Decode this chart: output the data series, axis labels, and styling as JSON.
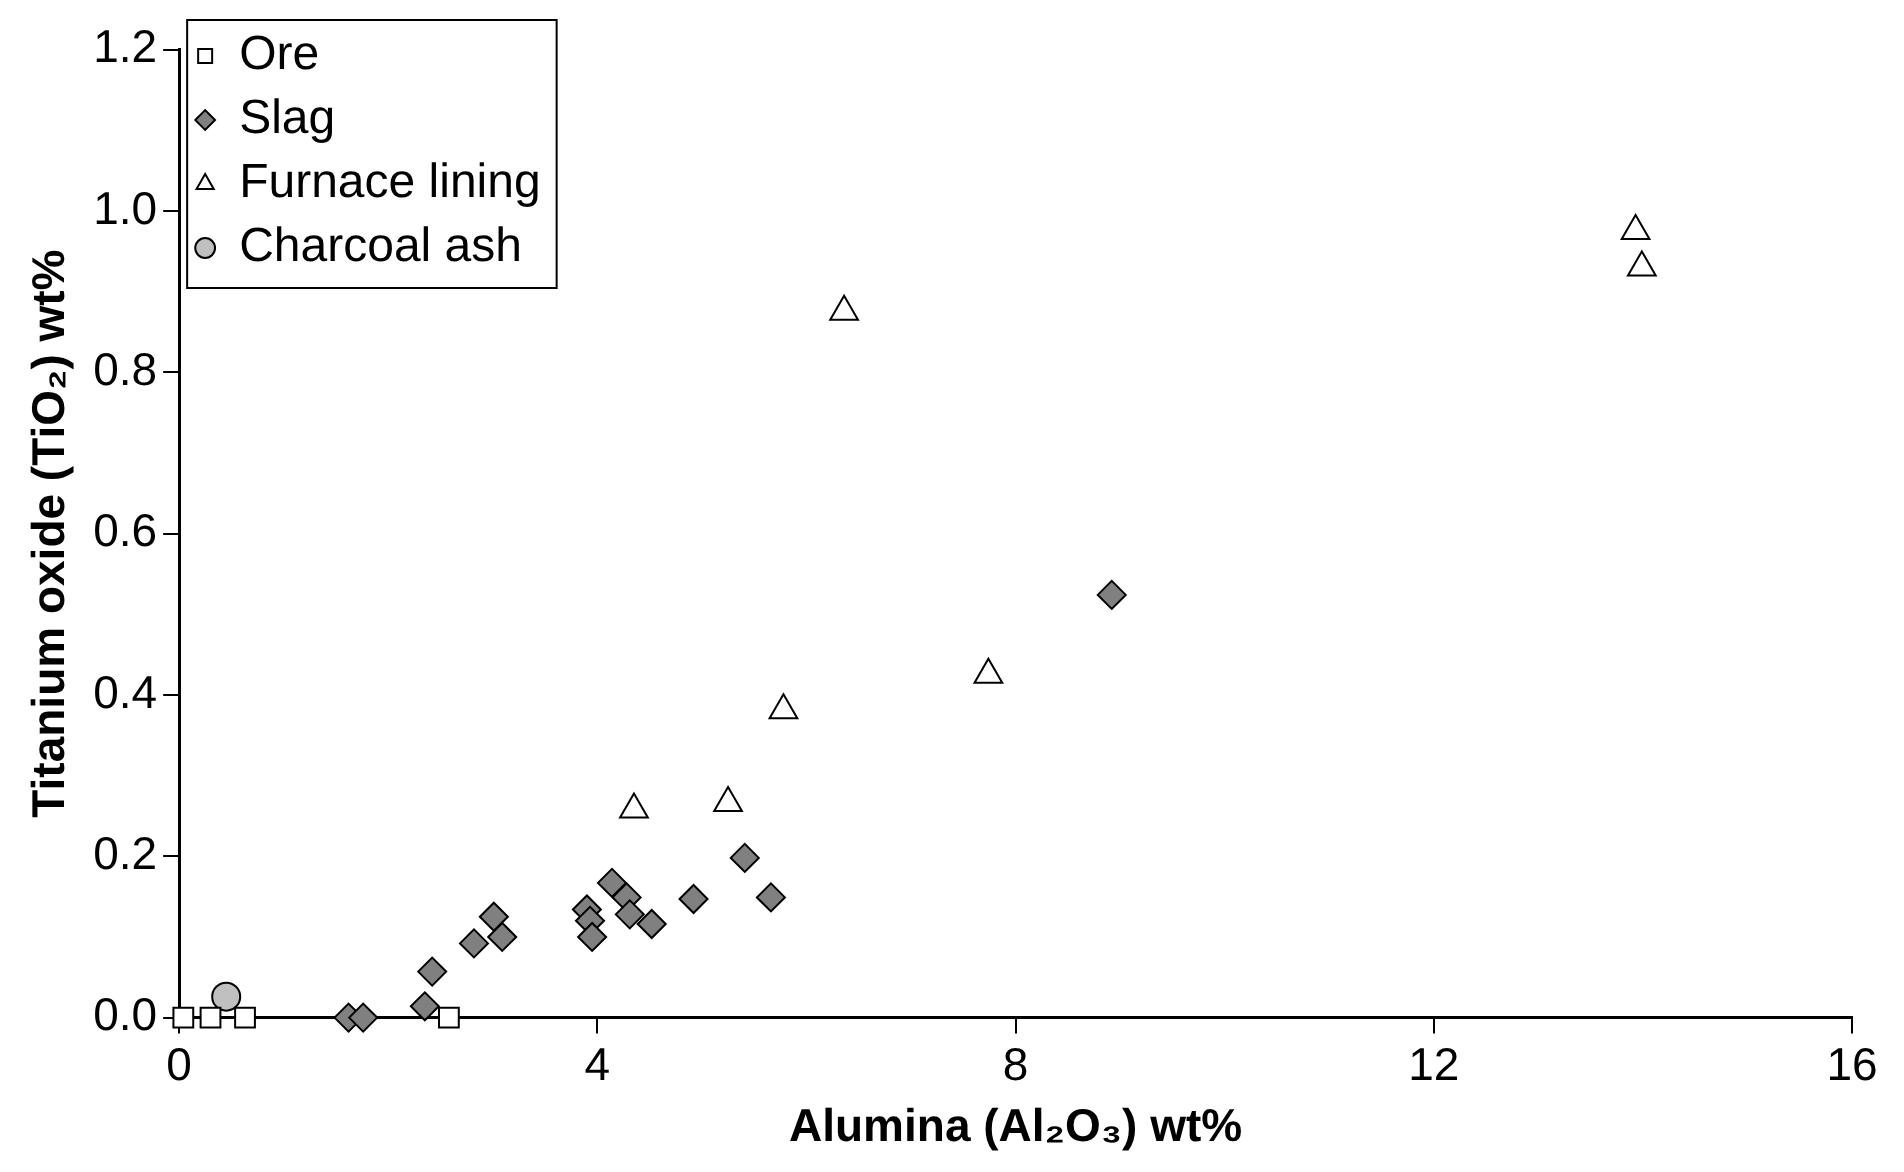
{
  "chart_data": {
    "type": "scatter",
    "xlabel": "Alumina (Al₂O₃) wt%",
    "ylabel": "Titanium oxide (TiO₂) wt%",
    "xlim": [
      0,
      16
    ],
    "xticks": [
      0,
      4,
      8,
      12,
      16
    ],
    "ylim": [
      0,
      1.2
    ],
    "yticks": [
      {
        "value": 0,
        "label": "0.0"
      },
      {
        "value": 0.2,
        "label": "0.2"
      },
      {
        "value": 0.4,
        "label": "0.4"
      },
      {
        "value": 0.6,
        "label": "0.6"
      },
      {
        "value": 0.8,
        "label": "0.8"
      },
      {
        "value": 1,
        "label": "1.0"
      },
      {
        "value": 1.2,
        "label": "1.2"
      }
    ],
    "grid": false,
    "legend": "top left",
    "series": [
      {
        "name": "Ore",
        "color": "#ffffff",
        "marker": "square",
        "x": [
          0.04,
          0.3,
          0.63,
          2.58
        ],
        "values": [
          0,
          0,
          0,
          0
        ]
      },
      {
        "name": "Slag",
        "color": "#808080",
        "marker": "diamond",
        "x": [
          1.62,
          1.76,
          2.35,
          2.42,
          2.82,
          3.01,
          3.09,
          3.9,
          3.93,
          3.95,
          4.14,
          4.28,
          4.31,
          4.52,
          4.92,
          5.41,
          5.66,
          8.92
        ],
        "values": [
          0,
          0,
          0.014,
          0.057,
          0.092,
          0.125,
          0.1,
          0.134,
          0.12,
          0.1,
          0.167,
          0.149,
          0.128,
          0.116,
          0.147,
          0.198,
          0.149,
          0.524
        ]
      },
      {
        "name": "Furnace lining",
        "color": "#ffffff",
        "marker": "triangle",
        "x": [
          4.35,
          5.25,
          5.78,
          6.36,
          7.74,
          13.93,
          13.99
        ],
        "values": [
          0.258,
          0.266,
          0.381,
          0.875,
          0.425,
          0.975,
          0.93
        ]
      },
      {
        "name": "Charcoal ash",
        "color": "#c0c0c0",
        "marker": "circle",
        "x": [
          0.45
        ],
        "values": [
          0.026
        ]
      }
    ]
  }
}
